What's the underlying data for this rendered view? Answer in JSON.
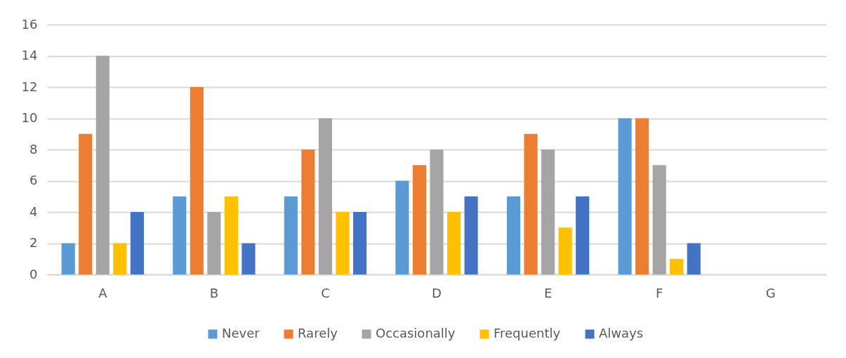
{
  "chart_data": {
    "type": "bar",
    "categories": [
      "A",
      "B",
      "C",
      "D",
      "E",
      "F",
      "G"
    ],
    "series": [
      {
        "name": "Never",
        "color": "#5b9bd5",
        "values": [
          2,
          5,
          5,
          6,
          5,
          10,
          null
        ]
      },
      {
        "name": "Rarely",
        "color": "#ed7d31",
        "values": [
          9,
          12,
          8,
          7,
          9,
          10,
          null
        ]
      },
      {
        "name": "Occasionally",
        "color": "#a5a5a5",
        "values": [
          14,
          4,
          10,
          8,
          8,
          7,
          null
        ]
      },
      {
        "name": "Frequently",
        "color": "#ffc000",
        "values": [
          2,
          5,
          4,
          4,
          3,
          1,
          null
        ]
      },
      {
        "name": "Always",
        "color": "#4472c4",
        "values": [
          4,
          2,
          4,
          5,
          5,
          2,
          null
        ]
      }
    ],
    "ylim": [
      0,
      16
    ],
    "yticks": [
      0,
      2,
      4,
      6,
      8,
      10,
      12,
      14,
      16
    ],
    "grid": "y",
    "legend": "bottom"
  }
}
